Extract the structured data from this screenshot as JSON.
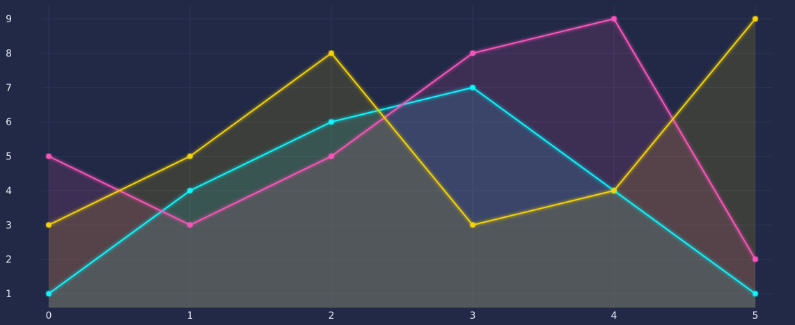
{
  "colors": {
    "background": "#212946",
    "grid": "#2c3558",
    "tick_text": "#e6e8f0"
  },
  "chart_data": {
    "type": "area",
    "title": "",
    "xlabel": "",
    "ylabel": "",
    "x": [
      0,
      1,
      2,
      3,
      4,
      5
    ],
    "x_ticks": [
      "0",
      "1",
      "2",
      "3",
      "4",
      "5"
    ],
    "y_ticks": [
      "1",
      "2",
      "3",
      "4",
      "5",
      "6",
      "7",
      "8",
      "9"
    ],
    "xlim": [
      0,
      5
    ],
    "ylim": [
      0.6,
      9.4
    ],
    "grid": true,
    "legend": "none",
    "series": [
      {
        "color": "#08F7FE",
        "fill": "#08F7FE",
        "values": [
          1,
          4,
          6,
          7,
          4,
          1
        ]
      },
      {
        "color": "#FE53BB",
        "fill": "#FE53BB",
        "values": [
          5,
          3,
          5,
          8,
          9,
          2
        ]
      },
      {
        "color": "#F5D300",
        "fill": "#F5D300",
        "values": [
          3,
          5,
          8,
          3,
          4,
          9
        ]
      }
    ]
  }
}
